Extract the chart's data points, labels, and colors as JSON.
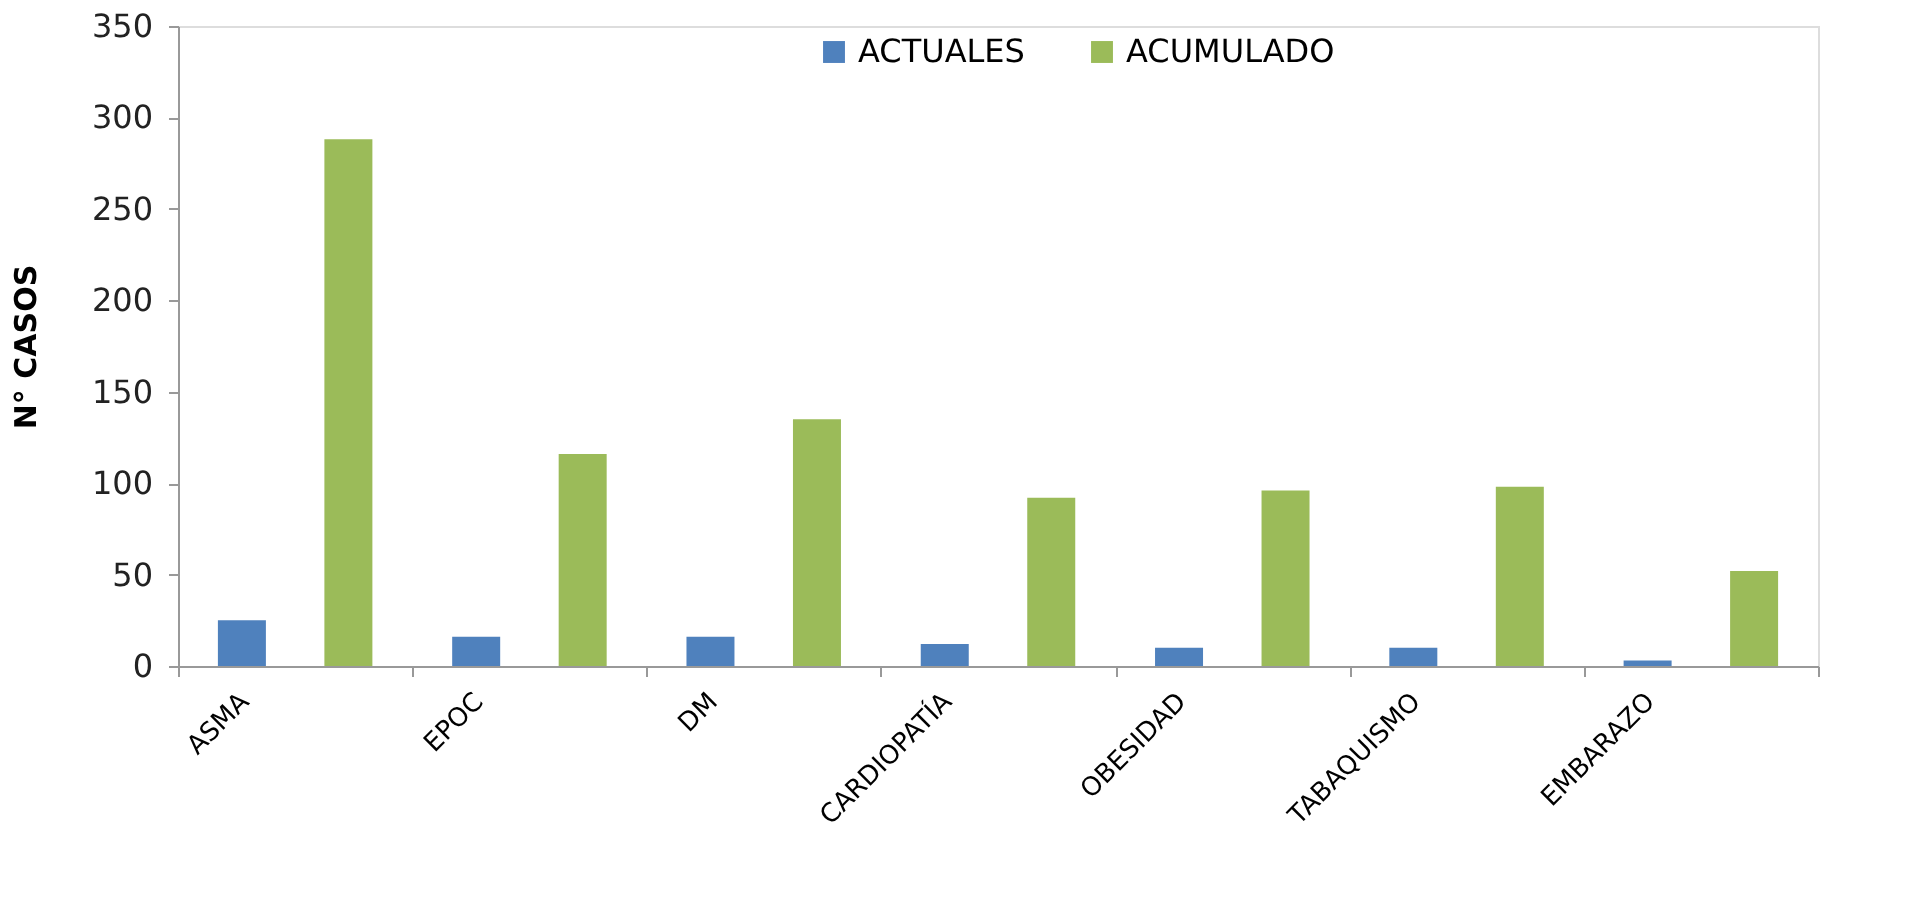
{
  "chart_data": {
    "type": "bar",
    "ylabel": "N° CASOS",
    "categories": [
      "ASMA",
      "EPOC",
      "DM",
      "CARDIOPATÍA",
      "OBESIDAD",
      "TABAQUISMO",
      "EMBARAZO",
      null
    ],
    "series": [
      {
        "name": "ACTUALES",
        "color": "#4f81bd",
        "values": [
          25,
          16,
          16,
          12,
          10,
          10,
          3,
          null
        ]
      },
      {
        "name": "ACUMULADO",
        "color": "#9bbb59",
        "values": [
          288,
          116,
          135,
          92,
          96,
          98,
          52,
          null
        ]
      }
    ],
    "ylim": [
      0,
      350
    ],
    "yticks": [
      0,
      50,
      100,
      150,
      200,
      250,
      300,
      350
    ],
    "grid": false,
    "legend": "top"
  }
}
